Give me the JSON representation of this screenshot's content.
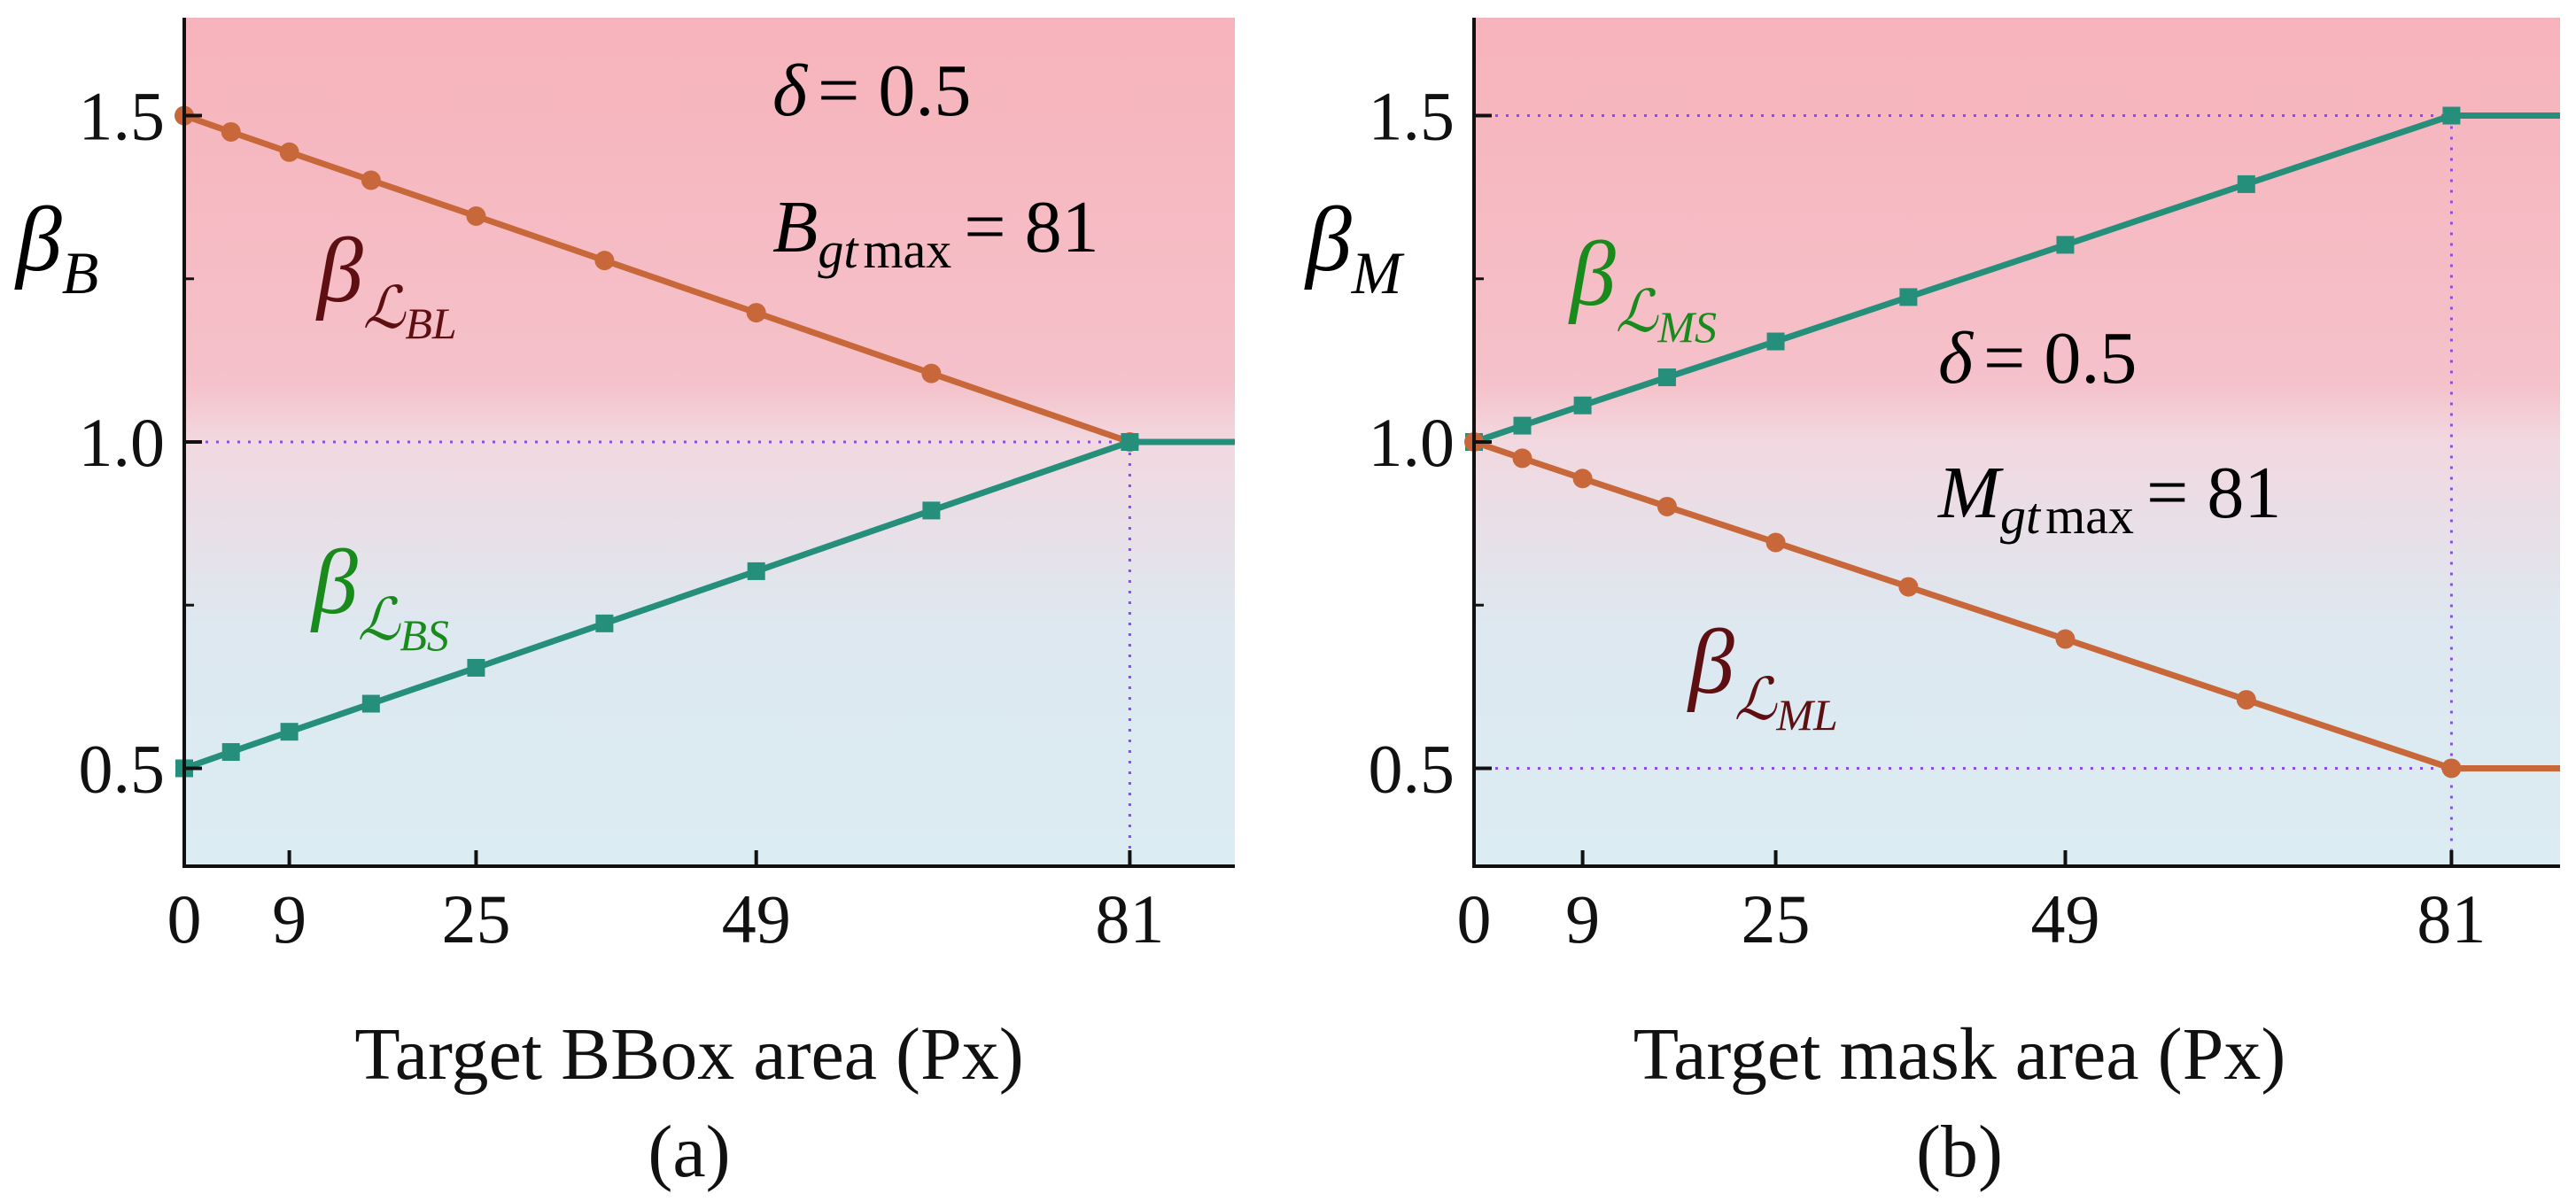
{
  "colors": {
    "red_series": "#c8683a",
    "green_series": "#268f7c",
    "red_label": "#5e0f12",
    "green_label": "#198a1c",
    "bg_top": "#f7b3bb",
    "bg_bottom": "#dcecf3",
    "guide": "#8a4fe0"
  },
  "chart_data": [
    {
      "type": "line",
      "caption": "(a)",
      "xlabel": "Target BBox area (Px)",
      "ylabel_base": "β",
      "ylabel_sub": "B",
      "xlim": [
        0,
        90
      ],
      "ylim": [
        0.35,
        1.65
      ],
      "xticks": [
        0,
        9,
        25,
        49,
        81
      ],
      "xtick_labels": [
        "0",
        "9",
        "25",
        "49",
        "81"
      ],
      "yticks": [
        0.5,
        1.0,
        1.5
      ],
      "ytick_labels": [
        "0.5",
        "1.0",
        "1.5"
      ],
      "guides": {
        "hline": 1.0,
        "vline": 81
      },
      "annotations": {
        "delta_sym": "δ",
        "delta_val": "= 0.5",
        "max_base": "B",
        "max_sub": "gt",
        "max_word": "max",
        "max_val": "= 81"
      },
      "series": [
        {
          "label_base": "β",
          "label_sub_script": "ℒ",
          "label_sub_sub": "BL",
          "color_key": "red_series",
          "label_color_key": "red_label",
          "marker": "circle",
          "x": [
            0,
            4,
            9,
            16,
            25,
            36,
            49,
            64,
            81,
            90
          ],
          "y": [
            1.5,
            1.475,
            1.444,
            1.401,
            1.346,
            1.278,
            1.198,
            1.105,
            1.0,
            1.0
          ],
          "marker_x": [
            0,
            4,
            9,
            16,
            25,
            36,
            49,
            64,
            81
          ]
        },
        {
          "label_base": "β",
          "label_sub_script": "ℒ",
          "label_sub_sub": "BS",
          "color_key": "green_series",
          "label_color_key": "green_label",
          "marker": "square",
          "x": [
            0,
            4,
            9,
            16,
            25,
            36,
            49,
            64,
            81,
            90
          ],
          "y": [
            0.5,
            0.525,
            0.556,
            0.599,
            0.654,
            0.722,
            0.802,
            0.895,
            1.0,
            1.0
          ],
          "marker_x": [
            0,
            4,
            9,
            16,
            25,
            36,
            49,
            64,
            81
          ]
        }
      ]
    },
    {
      "type": "line",
      "caption": "(b)",
      "xlabel": "Target mask area (Px)",
      "ylabel_base": "β",
      "ylabel_sub": "M",
      "xlim": [
        0,
        90
      ],
      "ylim": [
        0.35,
        1.65
      ],
      "xticks": [
        0,
        9,
        25,
        49,
        81
      ],
      "xtick_labels": [
        "0",
        "9",
        "25",
        "49",
        "81"
      ],
      "yticks": [
        0.5,
        1.0,
        1.5
      ],
      "ytick_labels": [
        "0.5",
        "1.0",
        "1.5"
      ],
      "guides": {
        "hlines": [
          1.5,
          0.5
        ],
        "vline": 81
      },
      "annotations": {
        "delta_sym": "δ",
        "delta_val": "= 0.5",
        "max_base": "M",
        "max_sub": "gt",
        "max_word": "max",
        "max_val": "= 81"
      },
      "series": [
        {
          "label_base": "β",
          "label_sub_script": "ℒ",
          "label_sub_sub": "MS",
          "color_key": "green_series",
          "label_color_key": "green_label",
          "marker": "square",
          "x": [
            0,
            4,
            9,
            16,
            25,
            36,
            49,
            64,
            81,
            90
          ],
          "y": [
            1.0,
            1.025,
            1.056,
            1.099,
            1.154,
            1.222,
            1.302,
            1.395,
            1.5,
            1.5
          ],
          "marker_x": [
            0,
            4,
            9,
            16,
            25,
            36,
            49,
            64,
            81
          ]
        },
        {
          "label_base": "β",
          "label_sub_script": "ℒ",
          "label_sub_sub": "ML",
          "color_key": "red_series",
          "label_color_key": "red_label",
          "marker": "circle",
          "x": [
            0,
            4,
            9,
            16,
            25,
            36,
            49,
            64,
            81,
            90
          ],
          "y": [
            1.0,
            0.975,
            0.944,
            0.901,
            0.846,
            0.778,
            0.698,
            0.605,
            0.5,
            0.5
          ],
          "marker_x": [
            0,
            4,
            9,
            16,
            25,
            36,
            49,
            64,
            81
          ]
        }
      ]
    }
  ]
}
